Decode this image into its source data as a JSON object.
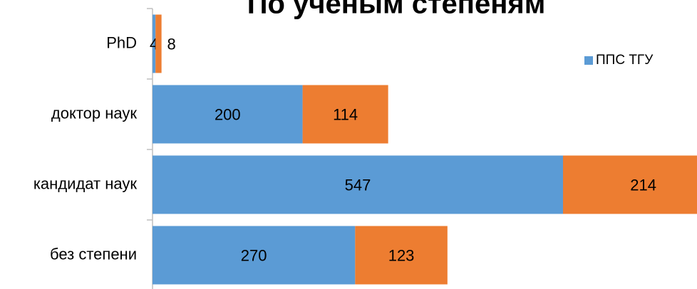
{
  "chart_data": {
    "type": "stacked-bar-horizontal",
    "title": "По ученым степеням",
    "categories": [
      "PhD",
      "доктор наук",
      "кандидат наук",
      "без степени"
    ],
    "series": [
      {
        "name": "ППС ТГУ",
        "color": "#5b9bd5",
        "values": [
          4,
          200,
          547,
          270
        ]
      },
      {
        "color": "#ed7d31",
        "values": [
          8,
          114,
          214,
          123
        ]
      }
    ],
    "legend": "right"
  }
}
